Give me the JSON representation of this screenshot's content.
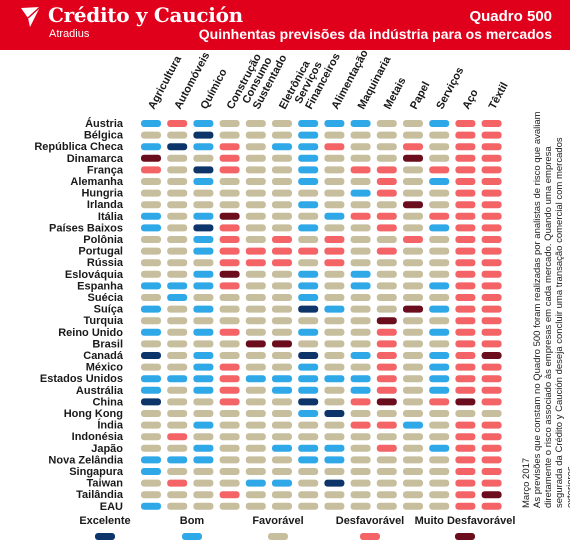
{
  "header": {
    "brand": "Crédito y Caución",
    "brand_sub": "Atradius",
    "quadro": "Quadro 500",
    "subtitle": "Quinhentas previsões da indústria para os mercados"
  },
  "side_note": {
    "date": "Março 2017",
    "text": "As previsões que constam no Quadro 500 foram realizadas por analistas de risco que avaliam diretamente o risco associado às empresas em cada mercado. Quando uma empresa segurada da Crédito y Caución deseja concluir uma transação comercial com mercados exteriores."
  },
  "colors": {
    "header_red": "#e0001c",
    "Excelente": "#0d3569",
    "Bom": "#2fa8e8",
    "Favorável": "#c7be9e",
    "Desfavorável": "#f46466",
    "Muito Desfavorável": "#6b0d1d"
  },
  "legend": [
    {
      "key": "E",
      "label": "Excelente"
    },
    {
      "key": "B",
      "label": "Bom"
    },
    {
      "key": "F",
      "label": "Favorável"
    },
    {
      "key": "D",
      "label": "Desfavorável"
    },
    {
      "key": "M",
      "label": "Muito Desfavorável"
    }
  ],
  "chart_data": {
    "type": "heatmap",
    "title": "Quinhentas previsões da indústria para os mercados",
    "columns": [
      [
        "Agricultura"
      ],
      [
        "Automóveis"
      ],
      [
        "Químico"
      ],
      [
        "Construção"
      ],
      [
        "Consumo",
        "Sustentado"
      ],
      [
        "Eletrônica"
      ],
      [
        "Serviços",
        "Financeiros"
      ],
      [
        "Alimentação"
      ],
      [
        "Maquinaria"
      ],
      [
        "Metais"
      ],
      [
        "Papel"
      ],
      [
        "Serviços"
      ],
      [
        "Aço"
      ],
      [
        "Têxtil"
      ]
    ],
    "rows": [
      {
        "country": "Áustria",
        "ratings": "BDBFFFBBBFFBDD"
      },
      {
        "country": "Bélgica",
        "ratings": "FFEFFFBFFFFFDD"
      },
      {
        "country": "República Checa",
        "ratings": "BEBDFBBDFFDFDD"
      },
      {
        "country": "Dinamarca",
        "ratings": "MFFDFFBFFFMFDD"
      },
      {
        "country": "França",
        "ratings": "DFEDFFBFDDFDDD"
      },
      {
        "country": "Alemanha",
        "ratings": "FFBFFFBFFDFBDD"
      },
      {
        "country": "Hungria",
        "ratings": "FFFFFFFFBDFFDD"
      },
      {
        "country": "Irlanda",
        "ratings": "FFFFFFBFFFMFDD"
      },
      {
        "country": "Itália",
        "ratings": "BFBMFFFBDDFDDD"
      },
      {
        "country": "Países Baixos",
        "ratings": "BFEDFFBFFDFBDD"
      },
      {
        "country": "Polônia",
        "ratings": "FFBDFDFDFFDFDD"
      },
      {
        "country": "Portugal",
        "ratings": "FFBDDDDDFDFFDD"
      },
      {
        "country": "Rússia",
        "ratings": "FFFDDDFDFFFFDD"
      },
      {
        "country": "Eslováquia",
        "ratings": "FFBMFFBFBFFFDD"
      },
      {
        "country": "Espanha",
        "ratings": "BBBDFFBFBFFBDD"
      },
      {
        "country": "Suécia",
        "ratings": "FBFFFFBFFFFFDD"
      },
      {
        "country": "Suíça",
        "ratings": "BFBFFFEBFFMBDD"
      },
      {
        "country": "Turquia",
        "ratings": "FFFFFFFFFMFFDD"
      },
      {
        "country": "Reino Unido",
        "ratings": "BFBDFFBFFDFBDD"
      },
      {
        "country": "Brasil",
        "ratings": "FFFFMMFFFDFFDD"
      },
      {
        "country": "Canadá",
        "ratings": "EFBFFFEFBDFBDM"
      },
      {
        "country": "México",
        "ratings": "FFBDFFBFFDFBDD"
      },
      {
        "country": "Estados Unidos",
        "ratings": "BBBDBBBBBDFBDD"
      },
      {
        "country": "Austrália",
        "ratings": "BFBDFBBFBDFBDD"
      },
      {
        "country": "China",
        "ratings": "EFFDFFEFDMFDMD"
      },
      {
        "country": "Hong Kong",
        "ratings": "FFFFFFBEFFFFFF"
      },
      {
        "country": "Índia",
        "ratings": "FFBFFFFFDDBFDD"
      },
      {
        "country": "Indonésia",
        "ratings": "FDFFFFFFFFFFDD"
      },
      {
        "country": "Japão",
        "ratings": "FFBFFBBBFDFBDD"
      },
      {
        "country": "Nova Zelândia",
        "ratings": "BBBFFFBBFFFFDD"
      },
      {
        "country": "Singapura",
        "ratings": "BFFFFFFFFFFFDD"
      },
      {
        "country": "Taiwan",
        "ratings": "FDFFBBFEFFFFDD"
      },
      {
        "country": "Tailândia",
        "ratings": "FFFDFFFFFFFFDM"
      },
      {
        "country": "EAU",
        "ratings": "BFFFFFFFFFFFDD"
      }
    ]
  }
}
